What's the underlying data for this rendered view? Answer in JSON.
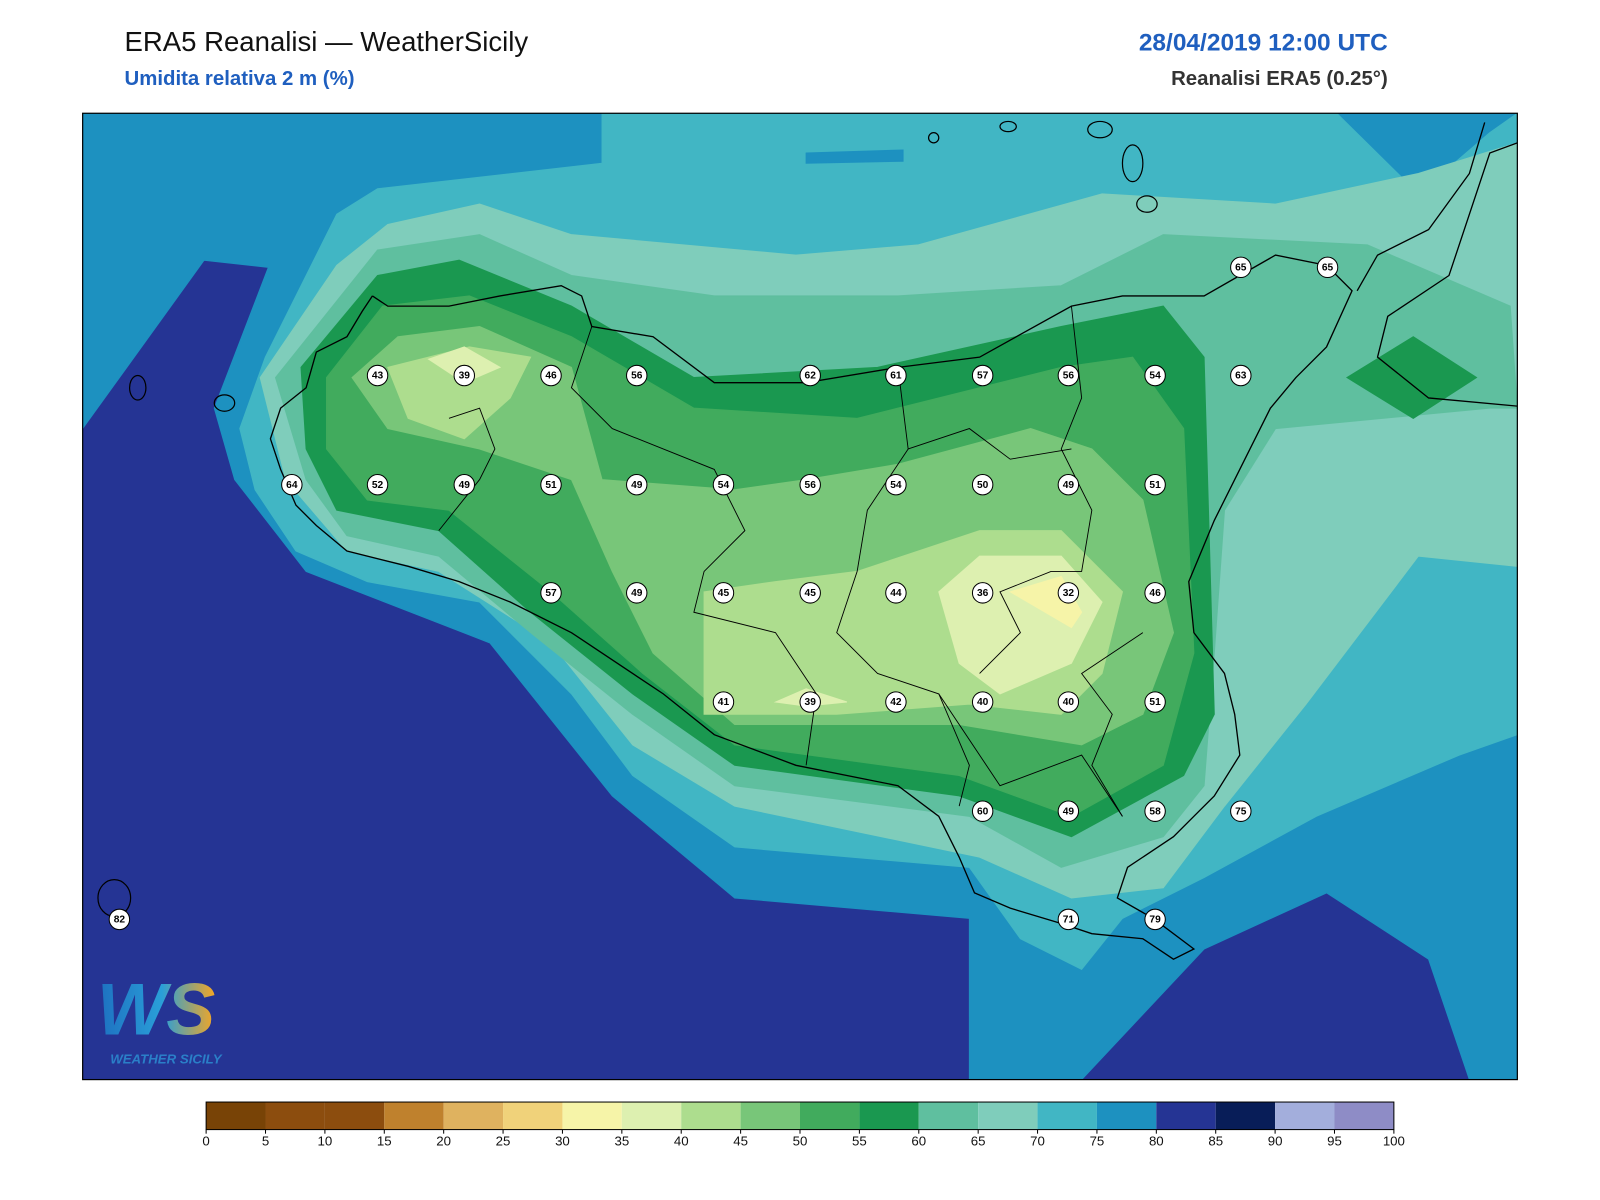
{
  "header": {
    "title": "ERA5 Reanalisi — WeatherSicily",
    "subtitle": "Umidita relativa 2 m (%)",
    "datetime": "28/04/2019 12:00 UTC",
    "source": "Reanalisi ERA5 (0.25°)"
  },
  "map": {
    "stations": [
      65,
      65,
      43,
      39,
      46,
      56,
      62,
      61,
      57,
      56,
      54,
      63,
      64,
      52,
      49,
      51,
      49,
      54,
      56,
      54,
      50,
      49,
      51,
      57,
      49,
      45,
      45,
      44,
      36,
      32,
      46,
      41,
      39,
      42,
      40,
      40,
      51,
      60,
      49,
      58,
      75,
      82,
      71,
      79
    ]
  },
  "colorbar": {
    "ticks": [
      0,
      5,
      10,
      15,
      20,
      25,
      30,
      35,
      40,
      45,
      50,
      55,
      60,
      65,
      70,
      75,
      80,
      85,
      90,
      95,
      100
    ],
    "colors": [
      "#784306",
      "#8c4d0e",
      "#8c4d0e",
      "#bf812d",
      "#dfb25f",
      "#f0d27a",
      "#f6f4a8",
      "#ddf0b0",
      "#addd8e",
      "#78c679",
      "#41ab5d",
      "#1a9850",
      "#5fbf9f",
      "#7fcdbb",
      "#41b6c4",
      "#1d91c0",
      "#253494",
      "#081d58",
      "#a3aedc",
      "#8e8cc6"
    ]
  },
  "logo": {
    "mark": "WS",
    "text": "WEATHER SICILY"
  }
}
